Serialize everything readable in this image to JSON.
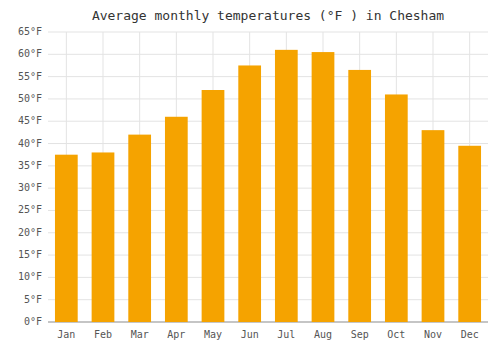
{
  "chart_data": {
    "type": "bar",
    "title": "Average monthly temperatures (°F ) in Chesham",
    "categories": [
      "Jan",
      "Feb",
      "Mar",
      "Apr",
      "May",
      "Jun",
      "Jul",
      "Aug",
      "Sep",
      "Oct",
      "Nov",
      "Dec"
    ],
    "values": [
      37.5,
      38.0,
      42.0,
      46.0,
      52.0,
      57.5,
      61.0,
      60.5,
      56.5,
      51.0,
      43.0,
      39.5
    ],
    "color": "#F5A300",
    "ylim": [
      0,
      65
    ],
    "yticks": [
      {
        "value": 0,
        "label": "0°F"
      },
      {
        "value": 5,
        "label": "5°F"
      },
      {
        "value": 10,
        "label": "10°F"
      },
      {
        "value": 15,
        "label": "15°F"
      },
      {
        "value": 20,
        "label": "20°F"
      },
      {
        "value": 25,
        "label": "25°F"
      },
      {
        "value": 30,
        "label": "30°F"
      },
      {
        "value": 35,
        "label": "35°F"
      },
      {
        "value": 40,
        "label": "40°F"
      },
      {
        "value": 45,
        "label": "45°F"
      },
      {
        "value": 50,
        "label": "50°F"
      },
      {
        "value": 55,
        "label": "55°F"
      },
      {
        "value": 60,
        "label": "60°F"
      },
      {
        "value": 65,
        "label": "65°F"
      }
    ],
    "grid": true
  }
}
